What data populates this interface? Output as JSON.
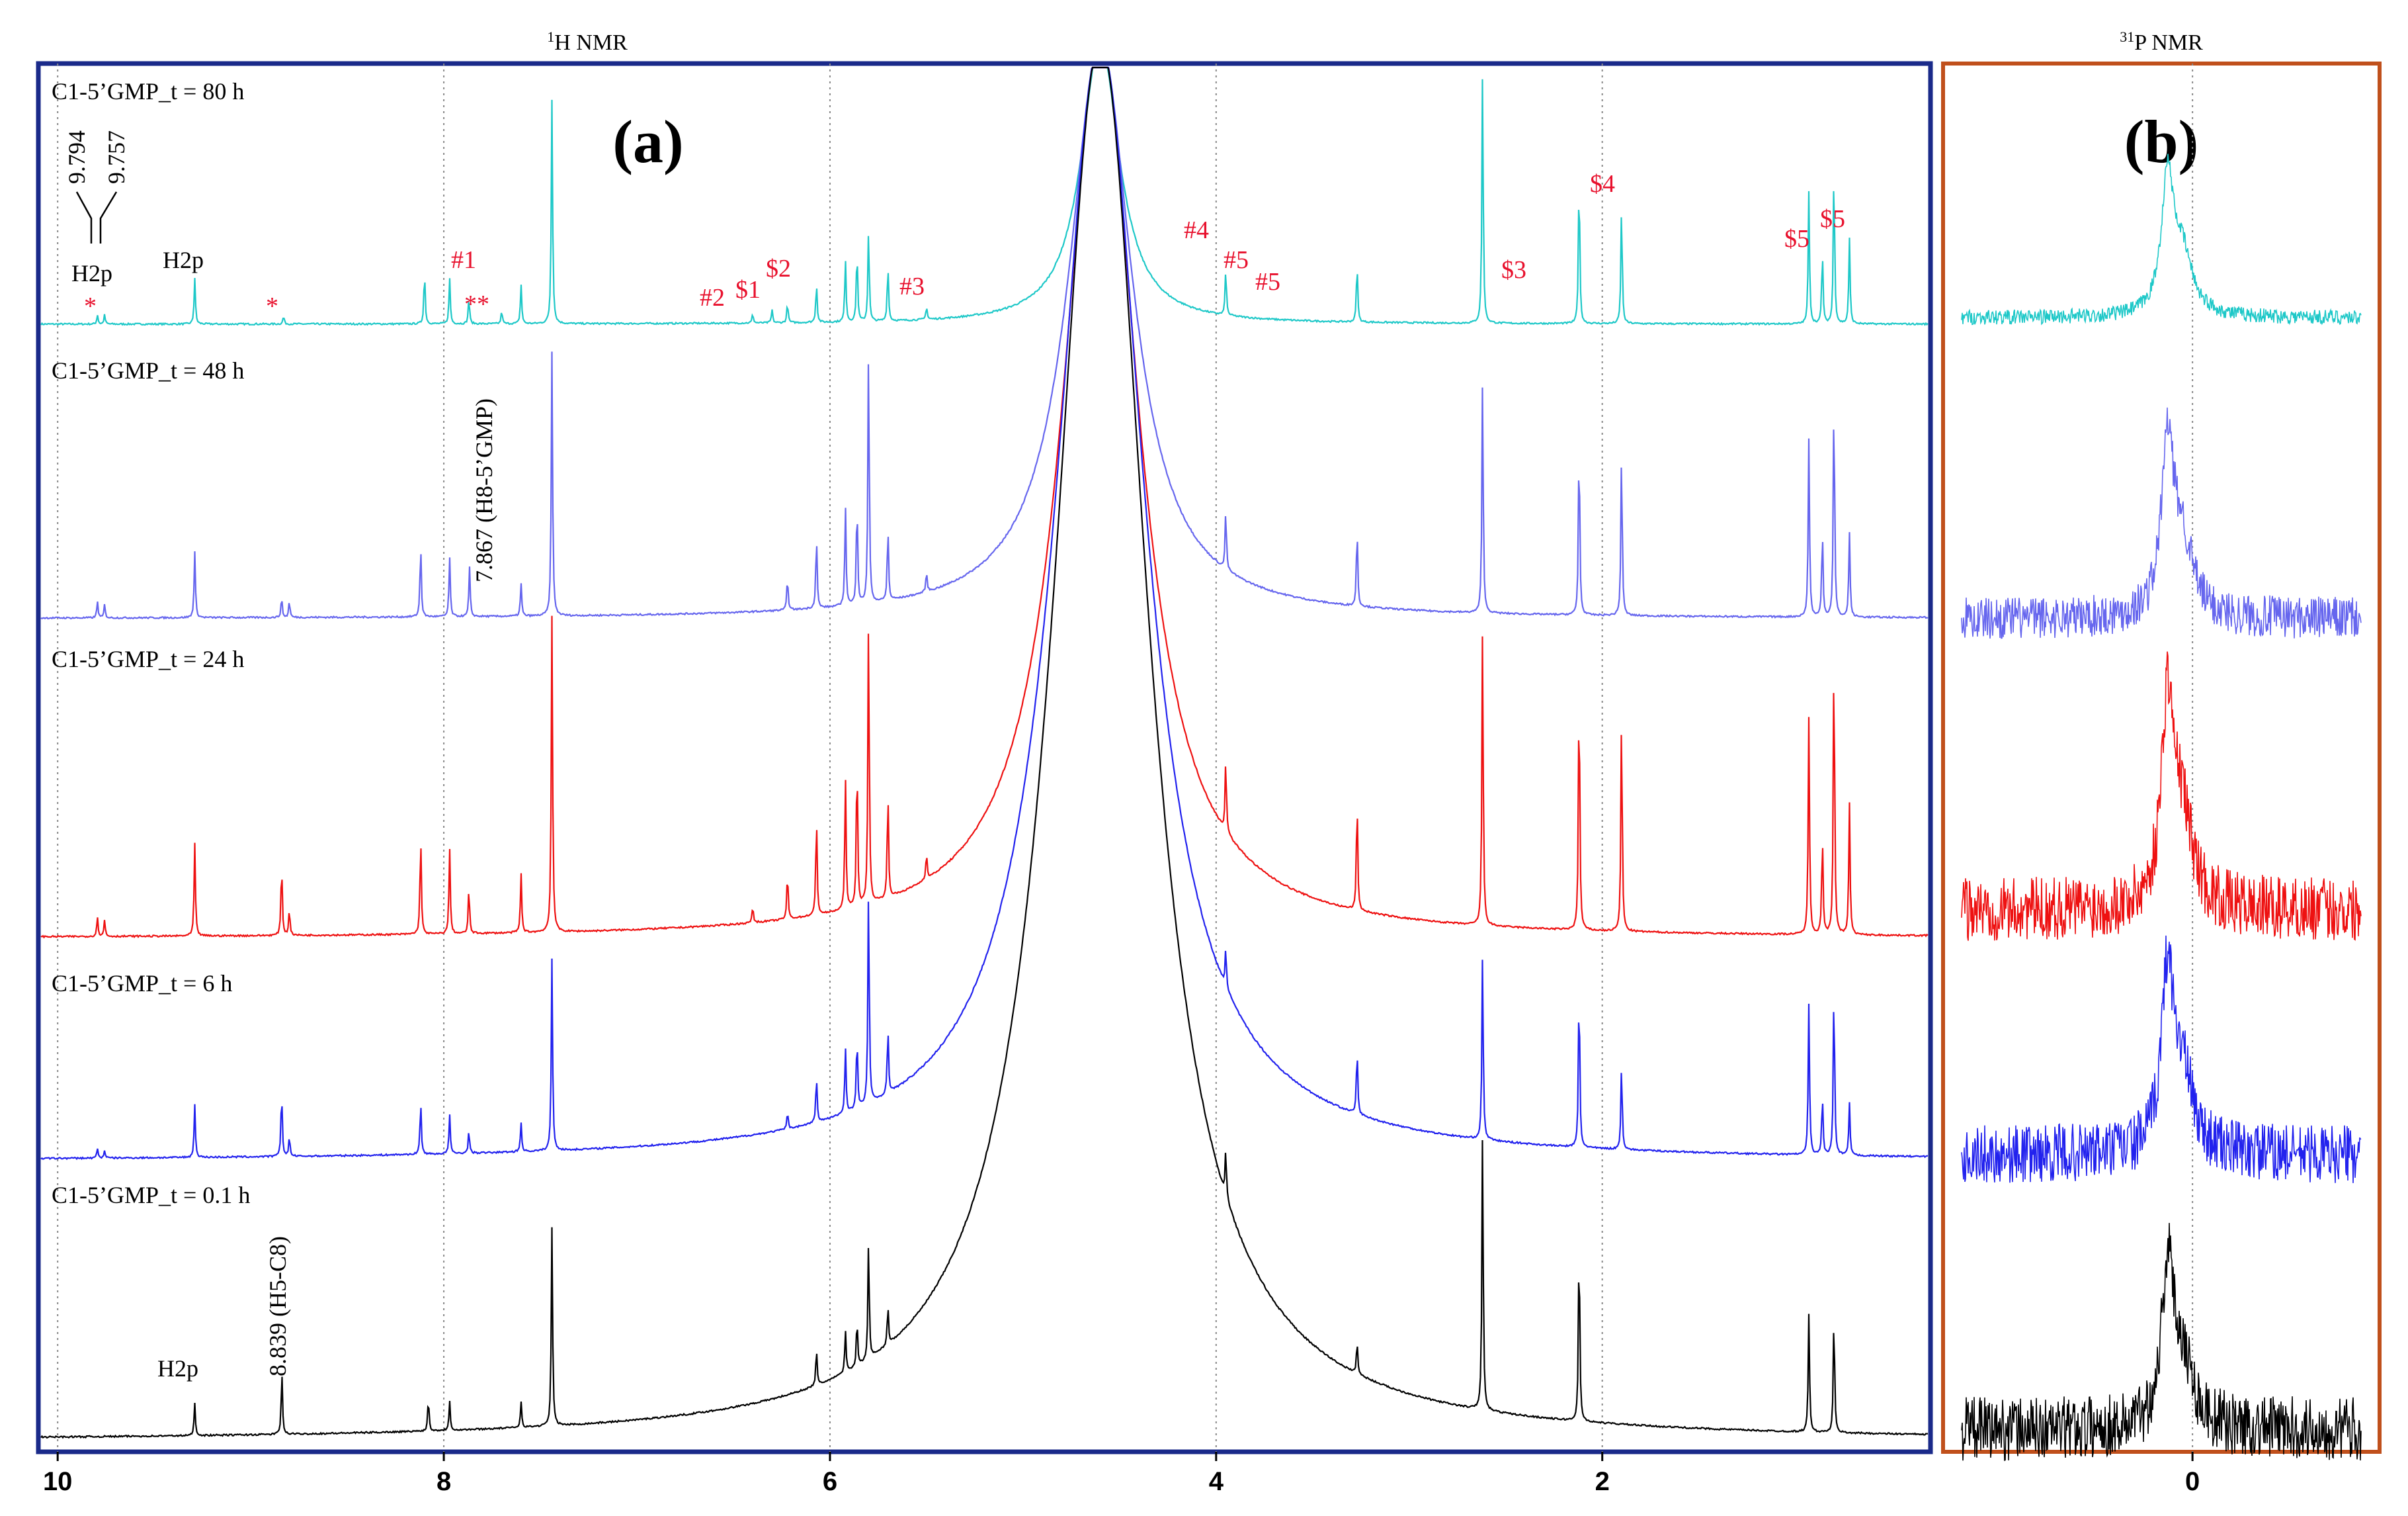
{
  "chart_data": {
    "type": "line",
    "panels": [
      {
        "letter": "(a)",
        "title_sup": "1",
        "title": "H NMR",
        "xlim": [
          10.1,
          0.3
        ],
        "ticks": [
          10,
          8,
          6,
          4,
          2
        ],
        "gridlines": [
          10,
          8,
          6,
          4,
          2
        ],
        "series": [
          {
            "name": "C1-5’GMP_t = 80 h",
            "color": "#1ec8c8",
            "peaks": [
              [
                9.794,
                14
              ],
              [
                9.757,
                14
              ],
              [
                9.29,
                70
              ],
              [
                8.83,
                12
              ],
              [
                8.1,
                80
              ],
              [
                7.97,
                70
              ],
              [
                7.87,
                40
              ],
              [
                7.7,
                20
              ],
              [
                7.6,
                60
              ],
              [
                7.44,
                340
              ],
              [
                6.4,
                14
              ],
              [
                6.3,
                20
              ],
              [
                6.22,
                30
              ],
              [
                6.07,
                60
              ],
              [
                5.92,
                95
              ],
              [
                5.86,
                110
              ],
              [
                5.8,
                140
              ],
              [
                5.7,
                85
              ],
              [
                5.5,
                20
              ],
              [
                3.95,
                70
              ],
              [
                3.27,
                90
              ],
              [
                2.62,
                380
              ],
              [
                2.12,
                230
              ],
              [
                1.9,
                180
              ],
              [
                0.93,
                200
              ],
              [
                0.86,
                110
              ],
              [
                0.8,
                240
              ],
              [
                0.72,
                130
              ]
            ]
          },
          {
            "name": "C1-5’GMP_t = 48 h",
            "color": "#6666ee",
            "peaks": [
              [
                9.794,
                25
              ],
              [
                9.757,
                20
              ],
              [
                9.29,
                100
              ],
              [
                8.84,
                30
              ],
              [
                8.8,
                25
              ],
              [
                8.12,
                110
              ],
              [
                7.97,
                90
              ],
              [
                7.867,
                75
              ],
              [
                7.6,
                50
              ],
              [
                7.44,
                400
              ],
              [
                6.22,
                50
              ],
              [
                6.07,
                110
              ],
              [
                5.92,
                150
              ],
              [
                5.86,
                160
              ],
              [
                5.8,
                390
              ],
              [
                5.7,
                110
              ],
              [
                5.5,
                30
              ],
              [
                3.95,
                90
              ],
              [
                3.27,
                120
              ],
              [
                2.62,
                350
              ],
              [
                2.12,
                270
              ],
              [
                1.9,
                250
              ],
              [
                0.93,
                270
              ],
              [
                0.86,
                130
              ],
              [
                0.8,
                340
              ],
              [
                0.72,
                130
              ]
            ]
          },
          {
            "name": "C1-5’GMP_t = 24 h",
            "color": "#ee1111",
            "peaks": [
              [
                9.794,
                30
              ],
              [
                9.757,
                25
              ],
              [
                9.29,
                140
              ],
              [
                8.84,
                110
              ],
              [
                8.8,
                40
              ],
              [
                8.12,
                150
              ],
              [
                7.97,
                130
              ],
              [
                7.87,
                70
              ],
              [
                7.6,
                90
              ],
              [
                7.44,
                480
              ],
              [
                6.4,
                25
              ],
              [
                6.22,
                70
              ],
              [
                6.07,
                150
              ],
              [
                5.92,
                200
              ],
              [
                5.86,
                230
              ],
              [
                5.8,
                440
              ],
              [
                5.7,
                160
              ],
              [
                5.5,
                40
              ],
              [
                3.95,
                110
              ],
              [
                3.27,
                170
              ],
              [
                2.62,
                450
              ],
              [
                2.12,
                380
              ],
              [
                1.9,
                330
              ],
              [
                0.93,
                330
              ],
              [
                0.86,
                150
              ],
              [
                0.8,
                440
              ],
              [
                0.72,
                200
              ]
            ]
          },
          {
            "name": "C1-5’GMP_t = 6 h",
            "color": "#2222ee",
            "peaks": [
              [
                9.794,
                15
              ],
              [
                9.757,
                12
              ],
              [
                9.29,
                80
              ],
              [
                8.84,
                100
              ],
              [
                8.8,
                30
              ],
              [
                8.12,
                80
              ],
              [
                7.97,
                60
              ],
              [
                7.87,
                35
              ],
              [
                7.6,
                45
              ],
              [
                7.44,
                290
              ],
              [
                6.22,
                25
              ],
              [
                6.07,
                70
              ],
              [
                5.92,
                100
              ],
              [
                5.86,
                110
              ],
              [
                5.8,
                330
              ],
              [
                5.7,
                100
              ],
              [
                3.95,
                60
              ],
              [
                3.27,
                100
              ],
              [
                2.62,
                280
              ],
              [
                2.12,
                250
              ],
              [
                1.9,
                130
              ],
              [
                0.93,
                230
              ],
              [
                0.86,
                90
              ],
              [
                0.8,
                260
              ],
              [
                0.72,
                80
              ]
            ]
          },
          {
            "name": "C1-5’GMP_t = 0.1 h",
            "color": "#000000",
            "peaks": [
              [
                9.29,
                50
              ],
              [
                8.839,
                95
              ],
              [
                8.08,
                50
              ],
              [
                7.97,
                45
              ],
              [
                7.6,
                40
              ],
              [
                7.44,
                300
              ],
              [
                6.07,
                55
              ],
              [
                5.92,
                65
              ],
              [
                5.86,
                70
              ],
              [
                5.8,
                180
              ],
              [
                5.7,
                60
              ],
              [
                3.95,
                70
              ],
              [
                3.27,
                50
              ],
              [
                2.62,
                420
              ],
              [
                2.12,
                280
              ],
              [
                0.93,
                180
              ],
              [
                0.8,
                180
              ]
            ]
          }
        ],
        "annotations": {
          "top_doublet": [
            "9.794",
            "9.757"
          ],
          "h2p": "H2p",
          "h8": "7.867 (H8-5’GMP)",
          "h5": "8.839 (H5-C8)",
          "red_labels": [
            "*",
            "*",
            "#1",
            "**",
            "#2",
            "$1",
            "$2",
            "#3",
            "#4",
            "#5",
            "#5",
            "$4",
            "$3",
            "$5",
            "$5"
          ]
        }
      },
      {
        "letter": "(b)",
        "title_sup": "31",
        "title": "P NMR",
        "xlim": [
          1.2,
          -0.9
        ],
        "ticks": [
          0
        ],
        "gridlines": [
          0
        ],
        "series_colors": [
          "#1ec8c8",
          "#6666ee",
          "#ee1111",
          "#2222ee",
          "#000000"
        ],
        "peak_heights": [
          200,
          250,
          300,
          260,
          230
        ],
        "noise_levels": [
          14,
          40,
          60,
          55,
          60
        ]
      }
    ]
  }
}
